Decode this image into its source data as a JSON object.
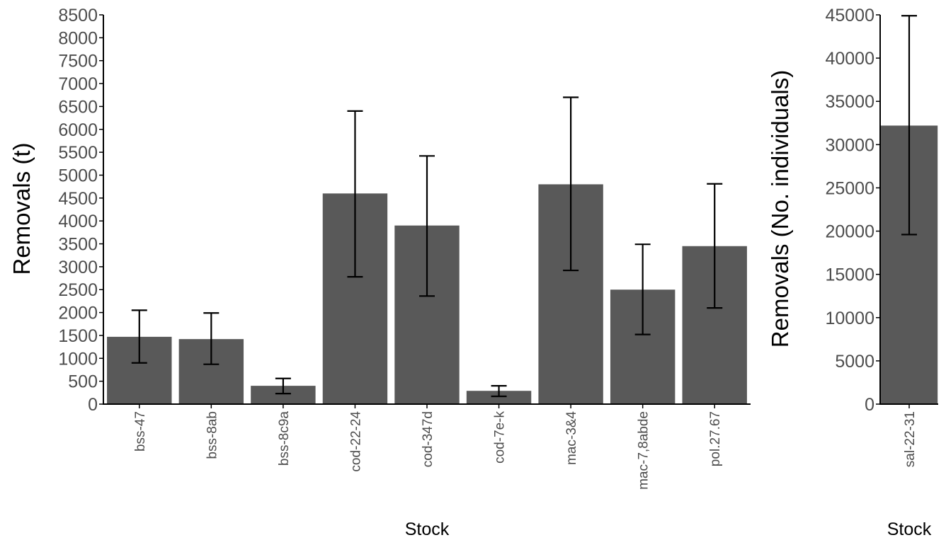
{
  "chart_data": [
    {
      "type": "bar",
      "xlabel": "Stock",
      "ylabel": "Removals (t)",
      "ylim": [
        0,
        8500
      ],
      "yticks": [
        0,
        500,
        1000,
        1500,
        2000,
        2500,
        3000,
        3500,
        4000,
        4500,
        5000,
        5500,
        6000,
        6500,
        7000,
        7500,
        8000,
        8500
      ],
      "categories": [
        "bss-47",
        "bss-8ab",
        "bss-8c9a",
        "cod-22-24",
        "cod-347d",
        "cod-7e-k",
        "mac-3&4",
        "mac-7,8abde",
        "pol.27.67"
      ],
      "values": [
        1470,
        1420,
        400,
        4600,
        3900,
        290,
        4800,
        2500,
        3450
      ],
      "error_low": [
        900,
        870,
        230,
        2780,
        2360,
        170,
        2920,
        1520,
        2100
      ],
      "error_high": [
        2050,
        1990,
        560,
        6400,
        5420,
        400,
        6700,
        3490,
        4810
      ],
      "grid": false,
      "bar_color": "#595959"
    },
    {
      "type": "bar",
      "xlabel": "Stock",
      "ylabel": "Removals (No. individuals)",
      "ylim": [
        0,
        45000
      ],
      "yticks": [
        0,
        5000,
        10000,
        15000,
        20000,
        25000,
        30000,
        35000,
        40000,
        45000
      ],
      "categories": [
        "sal-22-31"
      ],
      "values": [
        32200
      ],
      "error_low": [
        19600
      ],
      "error_high": [
        44900
      ],
      "grid": false,
      "bar_color": "#595959"
    }
  ]
}
